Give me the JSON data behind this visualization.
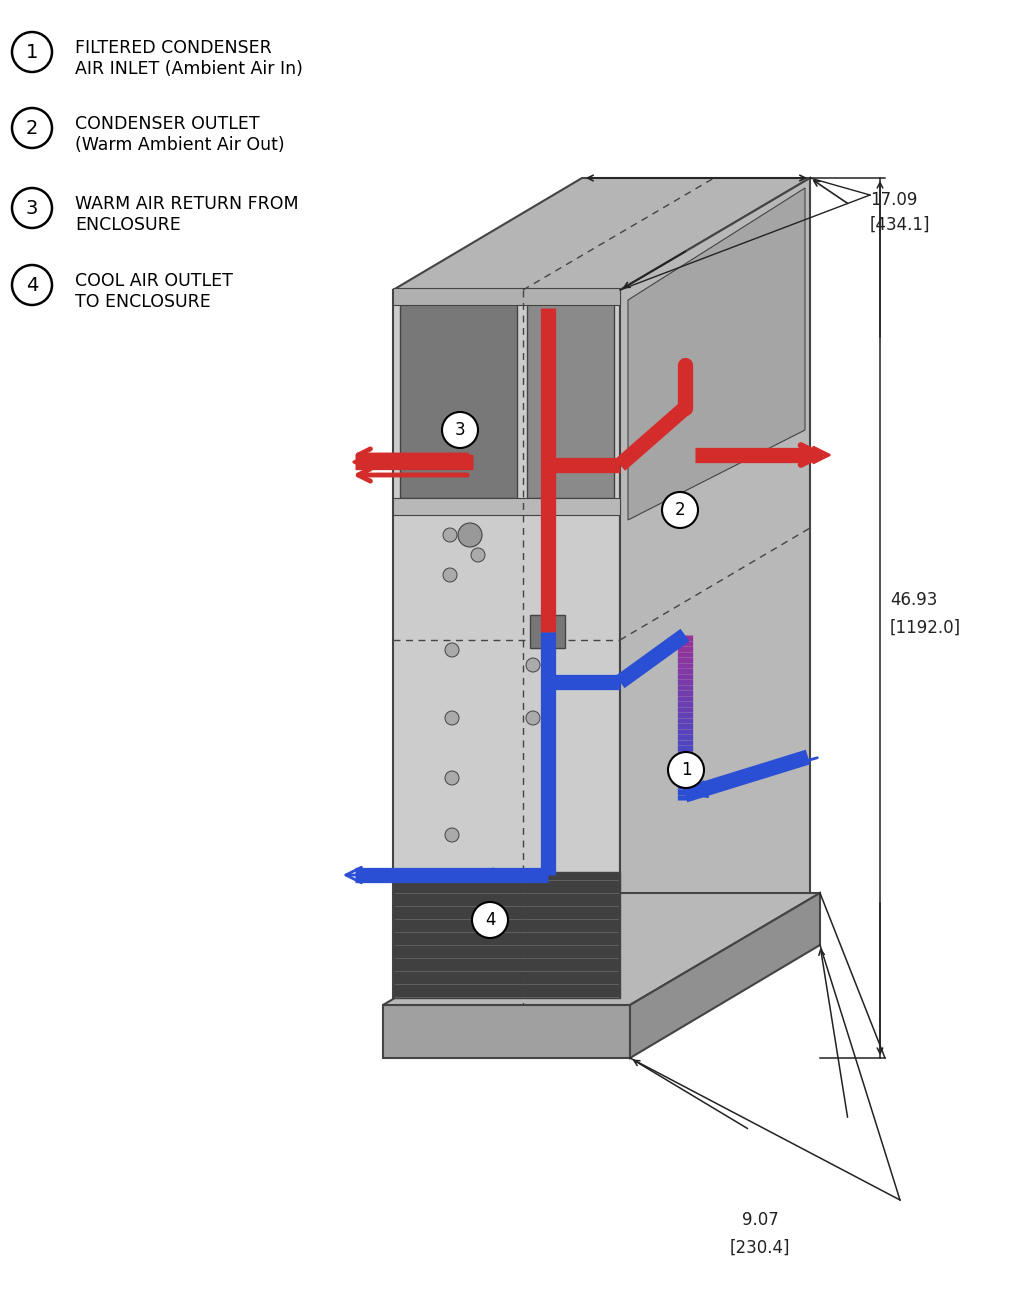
{
  "background_color": "#ffffff",
  "legend_items": [
    {
      "num": "1",
      "text_line1": "FILTERED CONDENSER",
      "text_line2": "AIR INLET (Ambient Air In)"
    },
    {
      "num": "2",
      "text_line1": "CONDENSER OUTLET",
      "text_line2": "(Warm Ambient Air Out)"
    },
    {
      "num": "3",
      "text_line1": "WARM AIR RETURN FROM",
      "text_line2": "ENCLOSURE"
    },
    {
      "num": "4",
      "text_line1": "COOL AIR OUTLET",
      "text_line2": "TO ENCLOSURE"
    }
  ],
  "dim_width_val": "17.09",
  "dim_width_mm": "[434.1]",
  "dim_height_val": "46.93",
  "dim_height_mm": "[1192.0]",
  "dim_depth_val": "9.07",
  "dim_depth_mm": "[230.4]",
  "red_color": "#d42b2b",
  "blue_color": "#2b4fd4",
  "dim_color": "#222222",
  "box_line_color": "#444444",
  "face_color_top": "#b5b5b5",
  "face_color_front": "#cccccc",
  "face_color_side": "#b8b8b8",
  "face_dark": "#999999",
  "face_panel": "#787878",
  "face_inner": "#a8a8a8",
  "grill_color": "#404040",
  "plinth_front": "#a0a0a0",
  "plinth_top": "#b8b8b8",
  "plinth_side": "#909090"
}
